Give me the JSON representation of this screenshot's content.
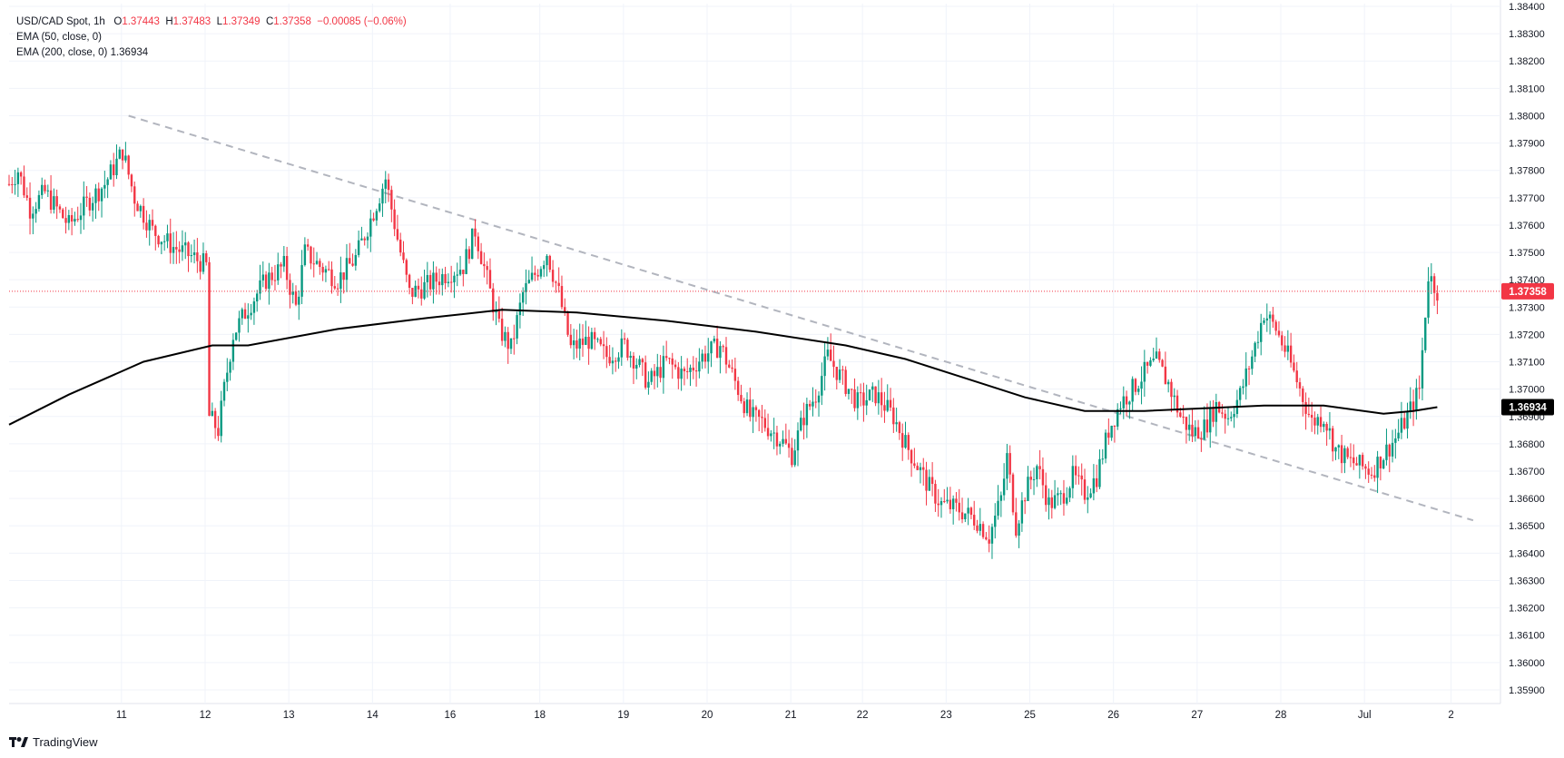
{
  "legend": {
    "symbol": "USD/CAD Spot, 1h",
    "ohlc": {
      "o_label": "O",
      "o": "1.37443",
      "h_label": "H",
      "h": "1.37483",
      "l_label": "L",
      "l": "1.37349",
      "c_label": "C",
      "c": "1.37358",
      "change": "−0.00085 (−0.06%)"
    },
    "ema50": "EMA (50, close, 0)",
    "ema200": "EMA (200, close, 0)",
    "ema200_value": "1.36934"
  },
  "brand": {
    "name": "TradingView",
    "icon": "tradingview-logo"
  },
  "colors": {
    "up": "#089981",
    "down": "#f23645",
    "ema200": "#000000",
    "trendline": "#b2b5be",
    "grid": "#f0f3fa",
    "text": "#131722",
    "price_badge": "#f23645",
    "ema_badge": "#000000"
  },
  "chart_data": {
    "type": "candlestick",
    "instrument": "USD/CAD Spot",
    "timeframe": "1h",
    "x_tick_labels": [
      "11",
      "12",
      "13",
      "14",
      "16",
      "18",
      "19",
      "20",
      "21",
      "22",
      "23",
      "25",
      "26",
      "27",
      "28",
      "Jul",
      "2"
    ],
    "y_tick_labels": [
      "1.38400",
      "1.38300",
      "1.38200",
      "1.38100",
      "1.38000",
      "1.37900",
      "1.37800",
      "1.37700",
      "1.37600",
      "1.37500",
      "1.37400",
      "1.37300",
      "1.37200",
      "1.37100",
      "1.37000",
      "1.36900",
      "1.36800",
      "1.36700",
      "1.36600",
      "1.36500",
      "1.36400",
      "1.36300",
      "1.36200",
      "1.36100",
      "1.36000",
      "1.35900"
    ],
    "ylim": [
      1.3585,
      1.3841
    ],
    "last_price": "1.37358",
    "ema200_last": "1.36934",
    "price_path": [
      [
        0,
        1.3775
      ],
      [
        3,
        1.378
      ],
      [
        7,
        1.3766
      ],
      [
        12,
        1.3772
      ],
      [
        20,
        1.376
      ],
      [
        26,
        1.3768
      ],
      [
        32,
        1.3775
      ],
      [
        38,
        1.3787
      ],
      [
        42,
        1.377
      ],
      [
        48,
        1.3758
      ],
      [
        55,
        1.3752
      ],
      [
        62,
        1.3748
      ],
      [
        66,
        1.3745
      ],
      [
        67,
        1.369
      ],
      [
        70,
        1.3685
      ],
      [
        72,
        1.37
      ],
      [
        75,
        1.372
      ],
      [
        80,
        1.373
      ],
      [
        86,
        1.374
      ],
      [
        92,
        1.3745
      ],
      [
        96,
        1.373
      ],
      [
        99,
        1.375
      ],
      [
        104,
        1.3745
      ],
      [
        110,
        1.374
      ],
      [
        116,
        1.3748
      ],
      [
        122,
        1.3765
      ],
      [
        126,
        1.3777
      ],
      [
        130,
        1.3755
      ],
      [
        134,
        1.3735
      ],
      [
        140,
        1.3738
      ],
      [
        146,
        1.3742
      ],
      [
        152,
        1.3745
      ],
      [
        156,
        1.3758
      ],
      [
        160,
        1.374
      ],
      [
        164,
        1.3722
      ],
      [
        168,
        1.3715
      ],
      [
        172,
        1.3735
      ],
      [
        176,
        1.3742
      ],
      [
        180,
        1.375
      ],
      [
        184,
        1.3735
      ],
      [
        188,
        1.3715
      ],
      [
        194,
        1.3718
      ],
      [
        200,
        1.3712
      ],
      [
        206,
        1.3716
      ],
      [
        210,
        1.371
      ],
      [
        214,
        1.3702
      ],
      [
        220,
        1.371
      ],
      [
        226,
        1.3705
      ],
      [
        232,
        1.3712
      ],
      [
        238,
        1.3716
      ],
      [
        244,
        1.37
      ],
      [
        248,
        1.369
      ],
      [
        252,
        1.3688
      ],
      [
        258,
        1.3682
      ],
      [
        262,
        1.3676
      ],
      [
        266,
        1.369
      ],
      [
        270,
        1.3698
      ],
      [
        274,
        1.3712
      ],
      [
        278,
        1.3705
      ],
      [
        284,
        1.3695
      ],
      [
        290,
        1.3698
      ],
      [
        296,
        1.369
      ],
      [
        300,
        1.368
      ],
      [
        304,
        1.3672
      ],
      [
        308,
        1.3664
      ],
      [
        312,
        1.3658
      ],
      [
        318,
        1.3656
      ],
      [
        324,
        1.3652
      ],
      [
        328,
        1.3646
      ],
      [
        332,
        1.366
      ],
      [
        334,
        1.3675
      ],
      [
        337,
        1.365
      ],
      [
        340,
        1.3662
      ],
      [
        344,
        1.3672
      ],
      [
        348,
        1.3658
      ],
      [
        352,
        1.366
      ],
      [
        356,
        1.3668
      ],
      [
        360,
        1.3662
      ],
      [
        364,
        1.3668
      ],
      [
        368,
        1.3685
      ],
      [
        372,
        1.3695
      ],
      [
        376,
        1.37
      ],
      [
        380,
        1.3706
      ],
      [
        384,
        1.371
      ],
      [
        388,
        1.3702
      ],
      [
        392,
        1.369
      ],
      [
        396,
        1.3684
      ],
      [
        400,
        1.3686
      ],
      [
        404,
        1.3694
      ],
      [
        408,
        1.369
      ],
      [
        412,
        1.3698
      ],
      [
        416,
        1.3712
      ],
      [
        420,
        1.3728
      ],
      [
        424,
        1.3722
      ],
      [
        428,
        1.3712
      ],
      [
        432,
        1.37
      ],
      [
        436,
        1.3688
      ],
      [
        440,
        1.369
      ],
      [
        444,
        1.3678
      ],
      [
        448,
        1.3674
      ],
      [
        452,
        1.3672
      ],
      [
        456,
        1.367
      ],
      [
        460,
        1.3676
      ],
      [
        464,
        1.3682
      ],
      [
        468,
        1.369
      ],
      [
        472,
        1.37
      ],
      [
        475,
        1.3742
      ],
      [
        478,
        1.3736
      ]
    ],
    "ema200_path": [
      [
        0,
        1.3687
      ],
      [
        20,
        1.3698
      ],
      [
        45,
        1.371
      ],
      [
        68,
        1.3716
      ],
      [
        80,
        1.3716
      ],
      [
        110,
        1.3722
      ],
      [
        140,
        1.3726
      ],
      [
        165,
        1.3729
      ],
      [
        190,
        1.3728
      ],
      [
        220,
        1.3725
      ],
      [
        250,
        1.3721
      ],
      [
        280,
        1.3716
      ],
      [
        300,
        1.3711
      ],
      [
        320,
        1.3704
      ],
      [
        340,
        1.3697
      ],
      [
        360,
        1.3692
      ],
      [
        380,
        1.3692
      ],
      [
        400,
        1.3693
      ],
      [
        420,
        1.3694
      ],
      [
        440,
        1.3694
      ],
      [
        460,
        1.3691
      ],
      [
        470,
        1.3692
      ],
      [
        478,
        1.36934
      ]
    ],
    "trendline": [
      [
        40,
        1.38
      ],
      [
        490,
        1.3652
      ]
    ]
  }
}
